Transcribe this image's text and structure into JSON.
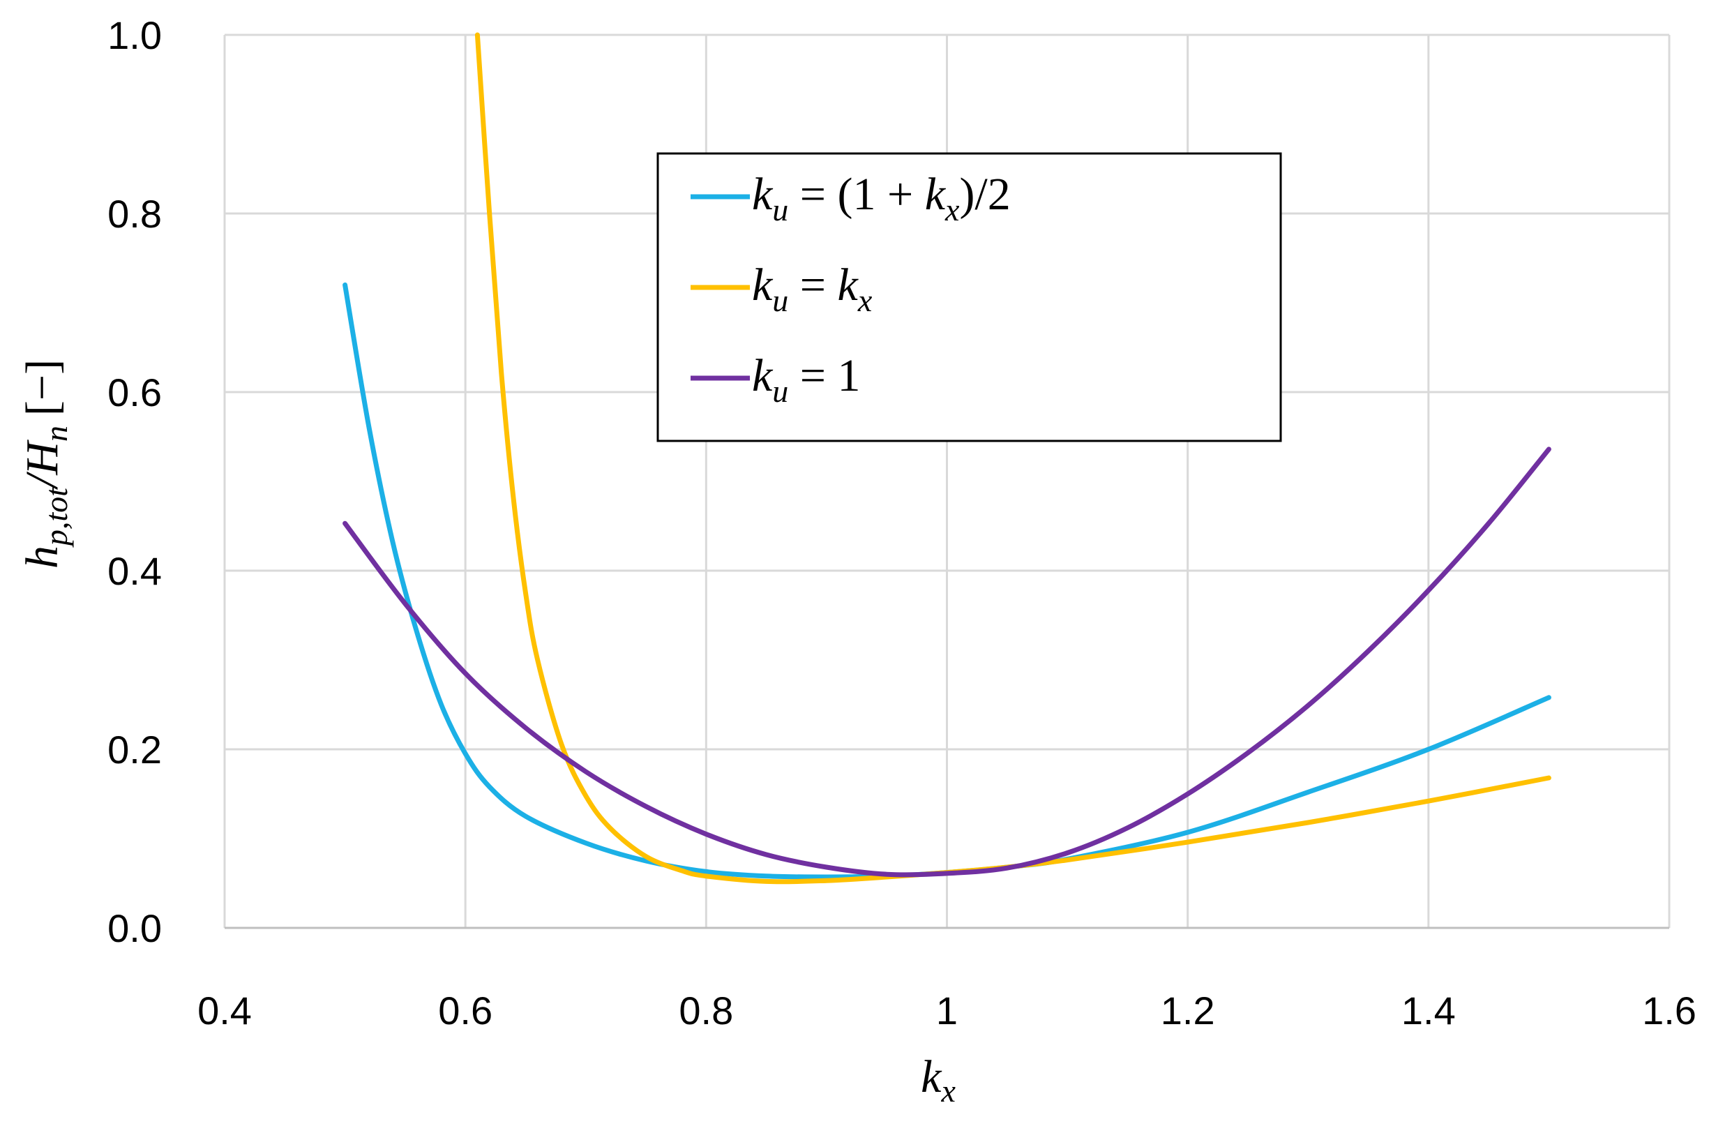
{
  "chart_data": {
    "type": "line",
    "xlabel": {
      "base": "k",
      "sub": "x"
    },
    "ylabel": {
      "base": "h",
      "sub1": "p,tot",
      "mid": "/",
      "base2": "H",
      "sub2": "n",
      "unit": "[−]"
    },
    "xlim": [
      0.4,
      1.6
    ],
    "ylim": [
      0.0,
      1.0
    ],
    "x_ticks": [
      "0.4",
      "0.6",
      "0.8",
      "1",
      "1.2",
      "1.4",
      "1.6"
    ],
    "y_ticks": [
      "0.0",
      "0.2",
      "0.4",
      "0.6",
      "0.8",
      "1.0"
    ],
    "grid": true,
    "legend_position": "top-center",
    "series": [
      {
        "name": "k_u = (1 + k_x)/2",
        "legend": {
          "base": "k",
          "sub": "u",
          "rhs_pre": " = (1 + ",
          "rhs_base": "k",
          "rhs_sub": "x",
          "rhs_post": ")/2"
        },
        "color": "#1CB0E6",
        "x": [
          0.5,
          0.52,
          0.54,
          0.56,
          0.58,
          0.6,
          0.62,
          0.65,
          0.7,
          0.75,
          0.8,
          0.85,
          0.9,
          0.95,
          1.0,
          1.05,
          1.1,
          1.2,
          1.3,
          1.4,
          1.5
        ],
        "y": [
          0.72,
          0.56,
          0.43,
          0.33,
          0.25,
          0.195,
          0.158,
          0.125,
          0.095,
          0.075,
          0.063,
          0.058,
          0.057,
          0.058,
          0.062,
          0.068,
          0.077,
          0.107,
          0.152,
          0.2,
          0.258
        ]
      },
      {
        "name": "k_u = k_x",
        "legend": {
          "base": "k",
          "sub": "u",
          "rhs_pre": " = ",
          "rhs_base": "k",
          "rhs_sub": "x",
          "rhs_post": ""
        },
        "color": "#FFC000",
        "x": [
          0.61,
          0.62,
          0.63,
          0.64,
          0.65,
          0.66,
          0.68,
          0.7,
          0.72,
          0.75,
          0.78,
          0.8,
          0.85,
          0.9,
          0.95,
          1.0,
          1.05,
          1.1,
          1.2,
          1.3,
          1.4,
          1.5
        ],
        "y": [
          1.0,
          0.8,
          0.62,
          0.48,
          0.375,
          0.3,
          0.205,
          0.148,
          0.112,
          0.08,
          0.064,
          0.058,
          0.052,
          0.053,
          0.057,
          0.062,
          0.068,
          0.076,
          0.096,
          0.118,
          0.142,
          0.168
        ]
      },
      {
        "name": "k_u = 1",
        "legend": {
          "base": "k",
          "sub": "u",
          "rhs_pre": " = 1",
          "rhs_base": "",
          "rhs_sub": "",
          "rhs_post": ""
        },
        "color": "#7030A0",
        "x": [
          0.5,
          0.55,
          0.6,
          0.65,
          0.7,
          0.75,
          0.8,
          0.85,
          0.9,
          0.95,
          1.0,
          1.05,
          1.1,
          1.15,
          1.2,
          1.25,
          1.3,
          1.35,
          1.4,
          1.45,
          1.5
        ],
        "y": [
          0.453,
          0.363,
          0.285,
          0.224,
          0.175,
          0.136,
          0.105,
          0.082,
          0.068,
          0.06,
          0.061,
          0.067,
          0.084,
          0.112,
          0.15,
          0.196,
          0.249,
          0.31,
          0.378,
          0.453,
          0.536
        ]
      }
    ]
  }
}
